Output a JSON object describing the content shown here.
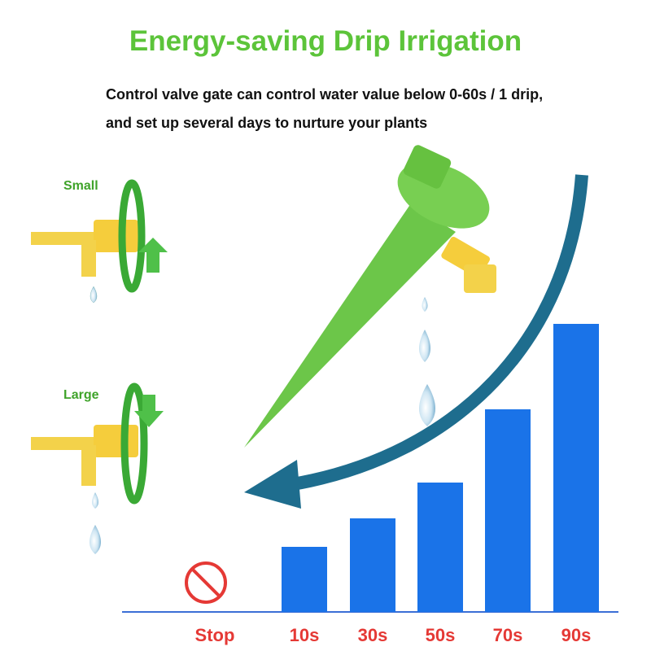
{
  "header": {
    "title": "Energy-saving Drip Irrigation",
    "lines": [
      "Control valve gate can control water value below 0-60s / 1 drip,",
      "and set up several days to nurture your plants"
    ]
  },
  "valves": {
    "small": "Small",
    "large": "Large"
  },
  "scale": {
    "labels": [
      "Stop",
      "10s",
      "30s",
      "50s",
      "70s",
      "90s"
    ]
  }
}
